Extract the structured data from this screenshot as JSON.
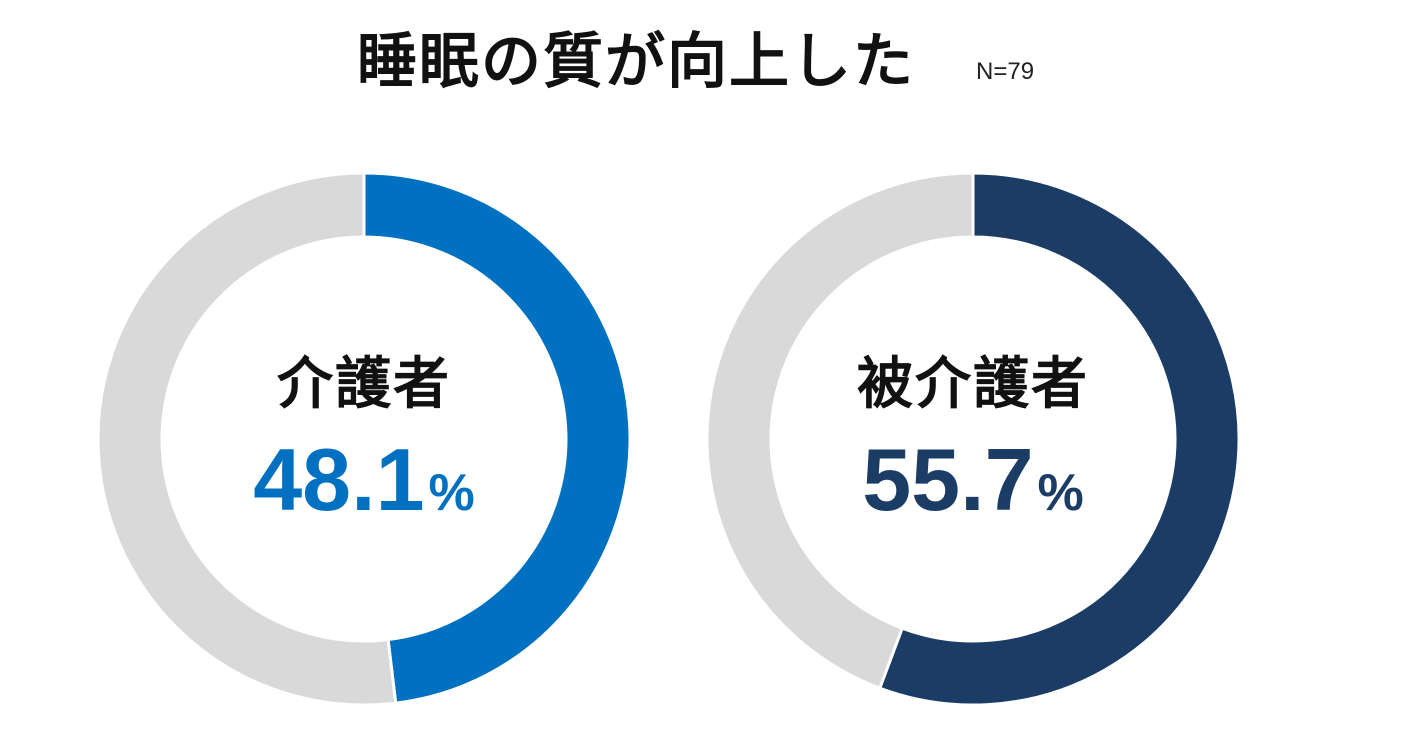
{
  "title": "睡眠の質が向上した",
  "sample_size": "N=79",
  "colors": {
    "remainder": "#d9d9d9",
    "caregiver": "#0070c0",
    "care_receiver": "#1b3c64",
    "separator": "#ffffff"
  },
  "chart_data": [
    {
      "type": "pie",
      "style": "donut",
      "label": "介護者",
      "value_text": "48.1",
      "unit": "%",
      "values": [
        48.1,
        51.9
      ],
      "slice_colors": [
        "#0070c0",
        "#d9d9d9"
      ]
    },
    {
      "type": "pie",
      "style": "donut",
      "label": "被介護者",
      "value_text": "55.7",
      "unit": "%",
      "values": [
        55.7,
        44.3
      ],
      "slice_colors": [
        "#1b3c64",
        "#d9d9d9"
      ]
    }
  ]
}
